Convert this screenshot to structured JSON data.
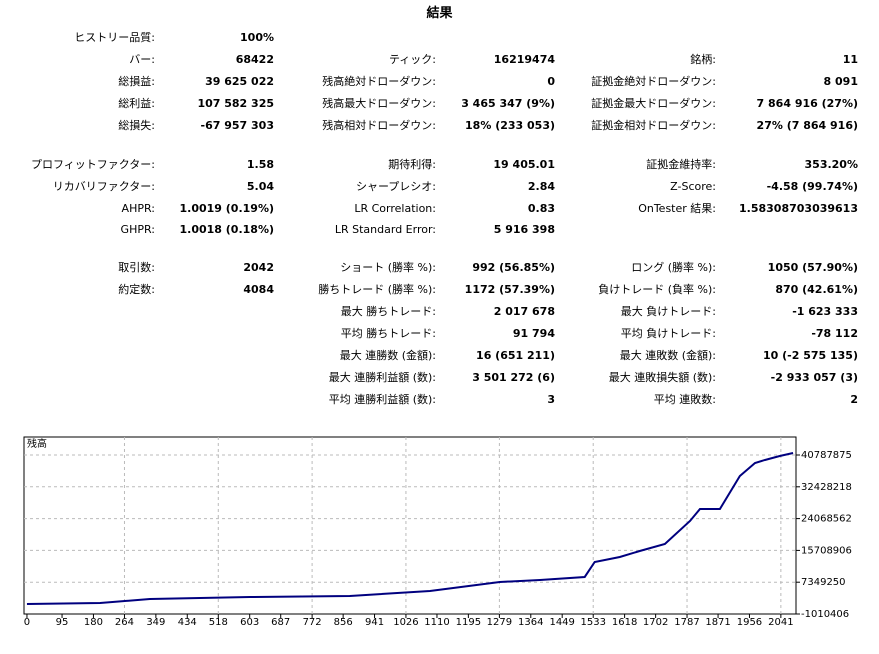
{
  "title": "結果",
  "sections": [
    [
      [
        [
          "ヒストリー品質:",
          "100%"
        ],
        null,
        null
      ],
      [
        [
          "バー:",
          "68422"
        ],
        [
          "ティック:",
          "16219474"
        ],
        [
          "銘柄:",
          "11"
        ]
      ],
      [
        [
          "総損益:",
          "39 625 022"
        ],
        [
          "残高絶対ドローダウン:",
          "0"
        ],
        [
          "証拠金絶対ドローダウン:",
          "8 091"
        ]
      ],
      [
        [
          "総利益:",
          "107 582 325"
        ],
        [
          "残高最大ドローダウン:",
          "3 465 347 (9%)"
        ],
        [
          "証拠金最大ドローダウン:",
          "7 864 916 (27%)"
        ]
      ],
      [
        [
          "総損失:",
          "-67 957 303"
        ],
        [
          "残高相対ドローダウン:",
          "18% (233 053)"
        ],
        [
          "証拠金相対ドローダウン:",
          "27% (7 864 916)"
        ]
      ]
    ],
    [
      [
        [
          "プロフィットファクター:",
          "1.58"
        ],
        [
          "期待利得:",
          "19 405.01"
        ],
        [
          "証拠金維持率:",
          "353.20%"
        ]
      ],
      [
        [
          "リカバリファクター:",
          "5.04"
        ],
        [
          "シャープレシオ:",
          "2.84"
        ],
        [
          "Z-Score:",
          "-4.58 (99.74%)"
        ]
      ],
      [
        [
          "AHPR:",
          "1.0019 (0.19%)"
        ],
        [
          "LR Correlation:",
          "0.83"
        ],
        [
          "OnTester 結果:",
          "1.58308703039613"
        ]
      ],
      [
        [
          "GHPR:",
          "1.0018 (0.18%)"
        ],
        [
          "LR Standard Error:",
          "5 916 398"
        ],
        null
      ]
    ],
    [
      [
        [
          "取引数:",
          "2042"
        ],
        [
          "ショート (勝率 %):",
          "992 (56.85%)"
        ],
        [
          "ロング (勝率 %):",
          "1050 (57.90%)"
        ]
      ],
      [
        [
          "約定数:",
          "4084"
        ],
        [
          "勝ちトレード (勝率 %):",
          "1172 (57.39%)"
        ],
        [
          "負けトレード (負率 %):",
          "870 (42.61%)"
        ]
      ],
      [
        null,
        [
          "最大 勝ちトレード:",
          "2 017 678"
        ],
        [
          "最大 負けトレード:",
          "-1 623 333"
        ]
      ],
      [
        null,
        [
          "平均 勝ちトレード:",
          "91 794"
        ],
        [
          "平均 負けトレード:",
          "-78 112"
        ]
      ],
      [
        null,
        [
          "最大 連勝数 (金額):",
          "16 (651 211)"
        ],
        [
          "最大 連敗数 (金額):",
          "10 (-2 575 135)"
        ]
      ],
      [
        null,
        [
          "最大 連勝利益額 (数):",
          "3 501 272 (6)"
        ],
        [
          "最大 連敗損失額 (数):",
          "-2 933 057 (3)"
        ]
      ],
      [
        null,
        [
          "平均 連勝利益額 (数):",
          "3"
        ],
        [
          "平均 連敗数:",
          "2"
        ]
      ]
    ]
  ],
  "chart_data": {
    "type": "line",
    "label": "残高",
    "color": "#00007f",
    "grid": true,
    "x": [
      0,
      198,
      333,
      604,
      874,
      1091,
      1280,
      1389,
      1510,
      1537,
      1605,
      1659,
      1727,
      1795,
      1822,
      1876,
      1930,
      1971,
      1998,
      2038,
      2074
    ],
    "values": [
      1620000,
      1880000,
      2930000,
      3460000,
      3720000,
      5040000,
      7400000,
      7930000,
      8720000,
      12660000,
      13980000,
      15550000,
      17390000,
      23440000,
      26590000,
      26590000,
      35270000,
      38690000,
      39480000,
      40530000,
      41320000
    ],
    "xlim": [
      -8,
      2082
    ],
    "ylim": [
      -1010406,
      45520000
    ],
    "xticks": [
      0,
      95,
      180,
      264,
      349,
      434,
      518,
      603,
      687,
      772,
      856,
      941,
      1026,
      1110,
      1195,
      1279,
      1364,
      1449,
      1533,
      1618,
      1702,
      1787,
      1871,
      1956,
      2041
    ],
    "yticks": [
      -1010406,
      7349250,
      15708906,
      24068562,
      32428218,
      40787875
    ]
  }
}
